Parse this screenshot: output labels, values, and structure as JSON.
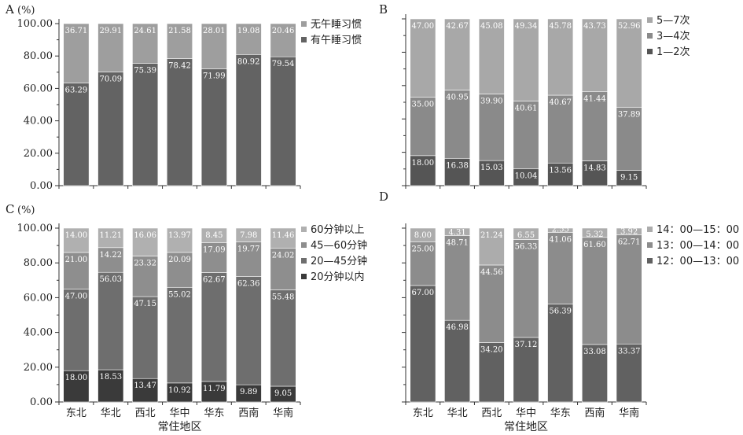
{
  "chart_data": [
    {
      "panel": "A",
      "type": "bar",
      "stacked": true,
      "unit_label": "(%)",
      "ylim": [
        0,
        100
      ],
      "y_ticks": [
        "0.00",
        "20.00",
        "40.00",
        "60.00",
        "80.00",
        "100.00"
      ],
      "categories": [
        "",
        "",
        "",
        "",
        "",
        "",
        ""
      ],
      "xlabel": "",
      "legend_position": "right",
      "series": [
        {
          "name": "有午睡习惯",
          "color": "#636363",
          "labels": [
            "63.29",
            "70.09",
            "75.39",
            "78.42",
            "71.99",
            "80.92",
            "79.54"
          ],
          "values": [
            63.29,
            70.09,
            75.39,
            78.42,
            71.99,
            80.92,
            79.54
          ]
        },
        {
          "name": "无午睡习惯",
          "color": "#9e9e9e",
          "labels": [
            "36.71",
            "29.91",
            "24.61",
            "21.58",
            "28.01",
            "19.08",
            "20.46"
          ],
          "values": [
            36.71,
            29.91,
            24.61,
            21.58,
            28.01,
            19.08,
            20.46
          ]
        }
      ]
    },
    {
      "panel": "B",
      "type": "bar",
      "stacked": true,
      "unit_label": "",
      "ylim": [
        0,
        100
      ],
      "y_ticks": [],
      "categories": [
        "",
        "",
        "",
        "",
        "",
        "",
        ""
      ],
      "xlabel": "",
      "legend_position": "right",
      "series": [
        {
          "name": "1—2次",
          "color": "#555555",
          "labels": [
            "18.00",
            "16.38",
            "15.03",
            "10.04",
            "13.56",
            "14.83",
            "9.15"
          ],
          "values": [
            18.0,
            16.38,
            15.03,
            10.04,
            13.56,
            14.83,
            9.15
          ]
        },
        {
          "name": "3—4次",
          "color": "#8a8a8a",
          "labels": [
            "35.00",
            "40.95",
            "39.90",
            "40.61",
            "40.67",
            "41.44",
            "37.89"
          ],
          "values": [
            35.0,
            40.95,
            39.9,
            40.61,
            40.67,
            41.44,
            37.89
          ]
        },
        {
          "name": "5—7次",
          "color": "#a8a8a8",
          "labels": [
            "47.00",
            "42.67",
            "45.08",
            "49.34",
            "45.78",
            "43.73",
            "52.96"
          ],
          "values": [
            47.0,
            42.67,
            45.08,
            49.34,
            45.78,
            43.73,
            52.96
          ]
        }
      ]
    },
    {
      "panel": "C",
      "type": "bar",
      "stacked": true,
      "unit_label": "(%)",
      "ylim": [
        0,
        100
      ],
      "y_ticks": [
        "0.00",
        "20.00",
        "40.00",
        "60.00",
        "80.00",
        "100.00"
      ],
      "categories": [
        "东北",
        "华北",
        "西北",
        "华中",
        "华东",
        "西南",
        "华南"
      ],
      "xlabel": "常住地区",
      "legend_position": "right",
      "series": [
        {
          "name": "20分钟以内",
          "color": "#3a3a3a",
          "labels": [
            "18.00",
            "18.53",
            "13.47",
            "10.92",
            "11.79",
            "9.89",
            "9.05"
          ],
          "values": [
            18.0,
            18.53,
            13.47,
            10.92,
            11.79,
            9.89,
            9.05
          ]
        },
        {
          "name": "20—45分钟",
          "color": "#6e6e6e",
          "labels": [
            "47.00",
            "56.03",
            "47.15",
            "55.02",
            "62.67",
            "62.36",
            "55.48"
          ],
          "values": [
            47.0,
            56.03,
            47.15,
            55.02,
            62.67,
            62.36,
            55.48
          ]
        },
        {
          "name": "45—60分钟",
          "color": "#8e8e8e",
          "labels": [
            "21.00",
            "14.22",
            "23.32",
            "20.09",
            "17.09",
            "19.77",
            "24.02"
          ],
          "values": [
            21.0,
            14.22,
            23.32,
            20.09,
            17.09,
            19.77,
            24.02
          ]
        },
        {
          "name": "60分钟以上",
          "color": "#b0b0b0",
          "labels": [
            "14.00",
            "11.21",
            "16.06",
            "13.97",
            "8.45",
            "7.98",
            "11.46"
          ],
          "values": [
            14.0,
            11.21,
            16.06,
            13.97,
            8.45,
            7.98,
            11.46
          ]
        }
      ]
    },
    {
      "panel": "D",
      "type": "bar",
      "stacked": true,
      "unit_label": "",
      "ylim": [
        0,
        100
      ],
      "y_ticks": [],
      "categories": [
        "东北",
        "华北",
        "西北",
        "华中",
        "华东",
        "西南",
        "华南"
      ],
      "xlabel": "常住地区",
      "legend_position": "right",
      "series": [
        {
          "name": "12：00—13：00",
          "color": "#616161",
          "labels": [
            "67.00",
            "46.98",
            "34.20",
            "37.12",
            "56.39",
            "33.08",
            "33.37"
          ],
          "values": [
            67.0,
            46.98,
            34.2,
            37.12,
            56.39,
            33.08,
            33.37
          ]
        },
        {
          "name": "13：00—14：00",
          "color": "#8c8c8c",
          "labels": [
            "25.00",
            "48.71",
            "44.56",
            "56.33",
            "41.06",
            "61.60",
            "62.71"
          ],
          "values": [
            25.0,
            48.71,
            44.56,
            56.33,
            41.06,
            61.6,
            62.71
          ]
        },
        {
          "name": "14：00—15：00",
          "color": "#acacac",
          "labels": [
            "8.00",
            "4.31",
            "21.24",
            "6.55",
            "2.55",
            "5.32",
            "3.92"
          ],
          "values": [
            8.0,
            4.31,
            21.24,
            6.55,
            2.55,
            5.32,
            3.92
          ]
        }
      ]
    }
  ]
}
